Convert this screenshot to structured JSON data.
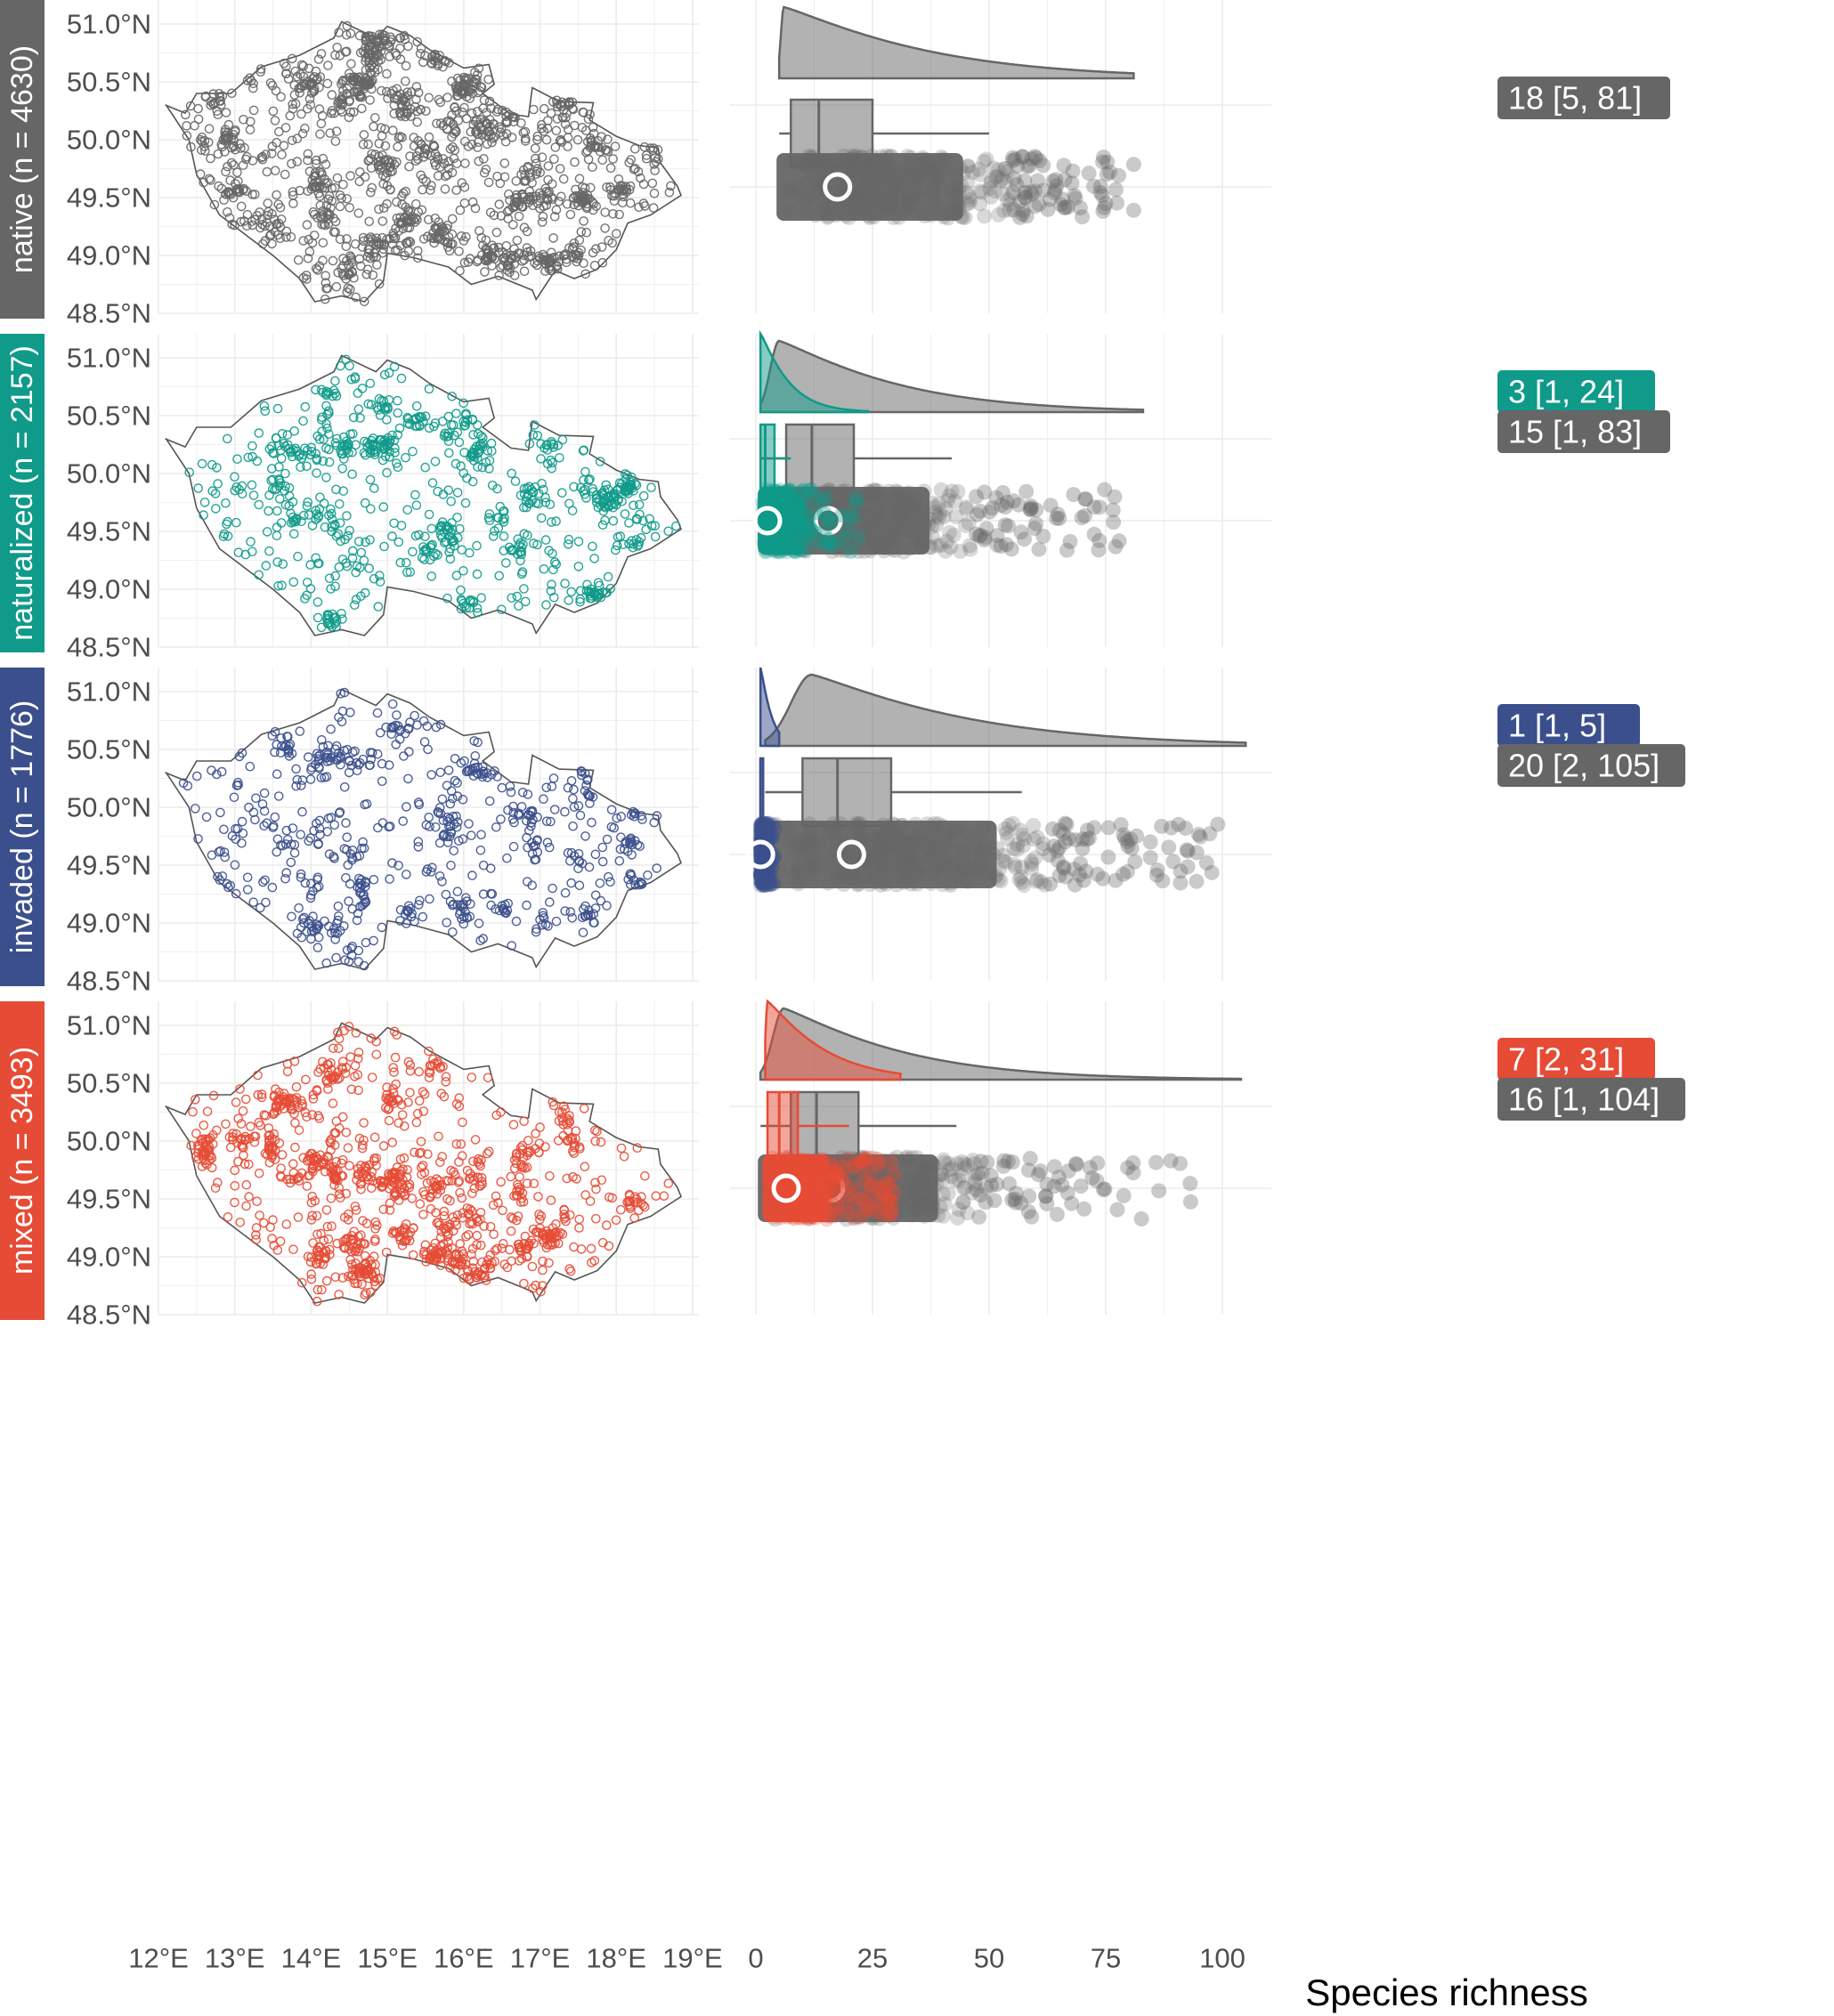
{
  "colors": {
    "native": "#666666",
    "naturalized": "#0f9a89",
    "invaded": "#3b4f8c",
    "mixed": "#e64b35",
    "grid": "#ebebeb",
    "outline": "#555555",
    "text": "#4d4d4d"
  },
  "map_axes": {
    "y_ticks": [
      "51.0°N",
      "50.5°N",
      "50.0°N",
      "49.5°N",
      "49.0°N",
      "48.5°N"
    ],
    "x_ticks": [
      "12°E",
      "13°E",
      "14°E",
      "15°E",
      "16°E",
      "17°E",
      "18°E",
      "19°E"
    ],
    "lat_range": [
      48.5,
      51.0
    ],
    "lon_range": [
      12,
      19
    ]
  },
  "chart_data": {
    "type": "raincloud",
    "xlabel": "Species richness",
    "x_ticks": [
      "0",
      "25",
      "50",
      "75",
      "100"
    ],
    "xlim": [
      0,
      105
    ],
    "panels": [
      {
        "strip": "native (n = 4630)",
        "groups": [
          {
            "color": "native",
            "label": "18 [5, 81]",
            "min": 5,
            "q1": 7.5,
            "median": 13.5,
            "q3": 25,
            "whisker_max": 50,
            "max": 81,
            "mean": 17.5,
            "peak": 6
          }
        ]
      },
      {
        "strip": "naturalized (n = 2157)",
        "groups": [
          {
            "color": "naturalized",
            "label": "3 [1, 24]",
            "min": 1,
            "q1": 1,
            "median": 2,
            "q3": 4,
            "whisker_max": 7.5,
            "max": 24,
            "mean": 2.5,
            "peak": 1
          },
          {
            "color": "native",
            "label": "15 [1, 83]",
            "min": 1,
            "q1": 6.5,
            "median": 12,
            "q3": 21,
            "whisker_max": 42,
            "max": 83,
            "mean": 15.5,
            "peak": 5
          }
        ]
      },
      {
        "strip": "invaded (n = 1776)",
        "groups": [
          {
            "color": "invaded",
            "label": "1 [1, 5]",
            "min": 1,
            "q1": 1,
            "median": 1,
            "q3": 1,
            "whisker_max": 1,
            "max": 5,
            "mean": 1,
            "peak": 1
          },
          {
            "color": "native",
            "label": "20 [2, 105]",
            "min": 2,
            "q1": 10,
            "median": 17.5,
            "q3": 29,
            "whisker_max": 57,
            "max": 105,
            "mean": 20.5,
            "peak": 12
          }
        ]
      },
      {
        "strip": "mixed (n = 3493)",
        "groups": [
          {
            "color": "mixed",
            "label": "7 [2, 31]",
            "min": 2,
            "q1": 2.5,
            "median": 5,
            "q3": 9,
            "whisker_max": 20,
            "max": 31,
            "mean": 6.5,
            "peak": 2.5
          },
          {
            "color": "native",
            "label": "16 [1, 104]",
            "min": 1,
            "q1": 7.5,
            "median": 13,
            "q3": 22,
            "whisker_max": 43,
            "max": 104,
            "mean": 16,
            "peak": 6
          }
        ]
      }
    ],
    "maps": {
      "type": "scatter",
      "description_fields": [
        "lon",
        "lat"
      ],
      "points_per_panel": [
        4630,
        2157,
        1776,
        3493
      ]
    }
  }
}
